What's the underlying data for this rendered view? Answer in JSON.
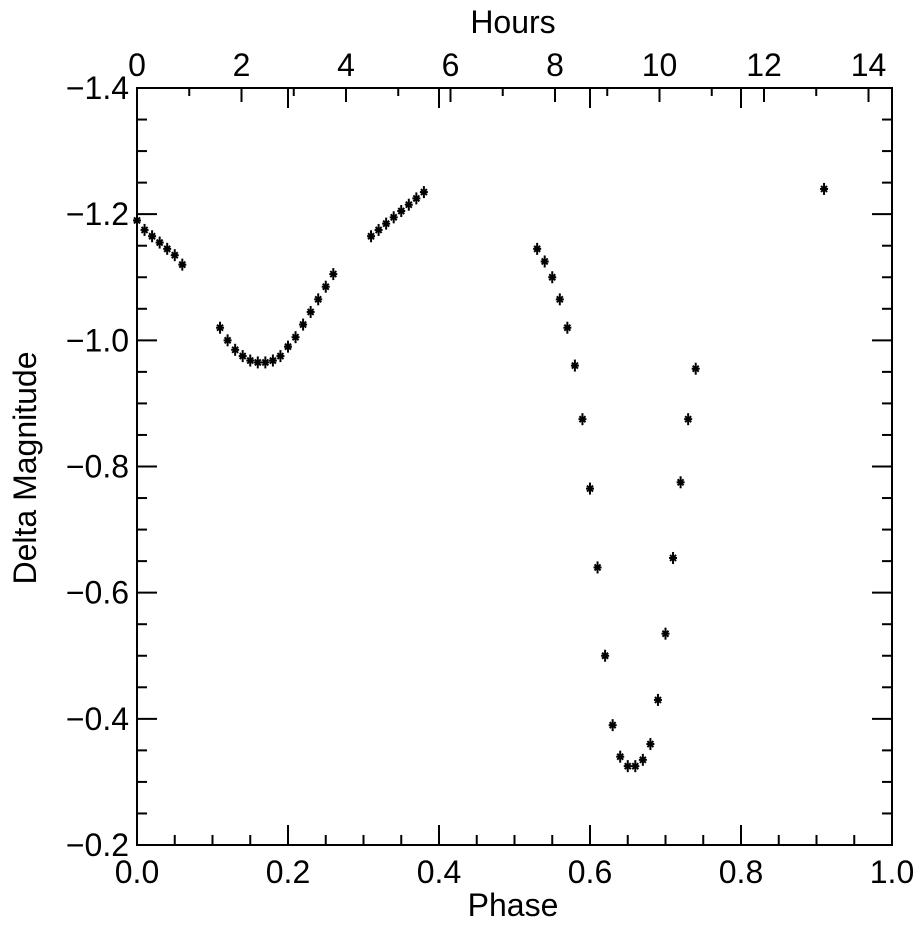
{
  "chart_data": {
    "type": "scatter",
    "title": "",
    "xlabel": "Phase",
    "ylabel": "Delta Magnitude",
    "x2label": "Hours",
    "xlim": [
      0.0,
      1.0
    ],
    "ylim": [
      -0.2,
      -1.4
    ],
    "x2lim": [
      0,
      14.45
    ],
    "xticks": [
      0.0,
      0.2,
      0.4,
      0.6,
      0.8,
      1.0
    ],
    "xtick_labels": [
      "0.0",
      "0.2",
      "0.4",
      "0.6",
      "0.8",
      "1.0"
    ],
    "yticks": [
      -0.2,
      -0.4,
      -0.6,
      -0.8,
      -1.0,
      -1.2,
      -1.4
    ],
    "ytick_labels": [
      "−0.2",
      "−0.4",
      "−0.6",
      "−0.8",
      "−1.0",
      "−1.2",
      "−1.4"
    ],
    "x2ticks": [
      0,
      2,
      4,
      6,
      8,
      10,
      12,
      14
    ],
    "x2tick_labels": [
      "0",
      "2",
      "4",
      "6",
      "8",
      "10",
      "12",
      "14"
    ],
    "grid": false,
    "marker_color": "#000000",
    "series": [
      {
        "points": [
          [
            0.0,
            -1.19
          ],
          [
            0.01,
            -1.175
          ],
          [
            0.02,
            -1.165
          ],
          [
            0.03,
            -1.155
          ],
          [
            0.04,
            -1.145
          ],
          [
            0.05,
            -1.135
          ],
          [
            0.06,
            -1.12
          ],
          [
            0.11,
            -1.02
          ],
          [
            0.12,
            -1.0
          ],
          [
            0.13,
            -0.985
          ],
          [
            0.14,
            -0.975
          ],
          [
            0.15,
            -0.968
          ],
          [
            0.16,
            -0.965
          ],
          [
            0.17,
            -0.965
          ],
          [
            0.18,
            -0.968
          ],
          [
            0.19,
            -0.975
          ],
          [
            0.2,
            -0.99
          ],
          [
            0.21,
            -1.005
          ],
          [
            0.22,
            -1.025
          ],
          [
            0.23,
            -1.045
          ],
          [
            0.24,
            -1.065
          ],
          [
            0.25,
            -1.085
          ],
          [
            0.26,
            -1.105
          ],
          [
            0.31,
            -1.165
          ],
          [
            0.32,
            -1.175
          ],
          [
            0.33,
            -1.185
          ],
          [
            0.34,
            -1.195
          ],
          [
            0.35,
            -1.205
          ],
          [
            0.36,
            -1.215
          ],
          [
            0.37,
            -1.225
          ],
          [
            0.38,
            -1.235
          ],
          [
            0.53,
            -1.145
          ],
          [
            0.54,
            -1.125
          ],
          [
            0.55,
            -1.1
          ],
          [
            0.56,
            -1.065
          ],
          [
            0.57,
            -1.02
          ],
          [
            0.58,
            -0.96
          ],
          [
            0.59,
            -0.875
          ],
          [
            0.6,
            -0.765
          ],
          [
            0.61,
            -0.64
          ],
          [
            0.62,
            -0.5
          ],
          [
            0.63,
            -0.39
          ],
          [
            0.64,
            -0.34
          ],
          [
            0.65,
            -0.325
          ],
          [
            0.66,
            -0.325
          ],
          [
            0.67,
            -0.335
          ],
          [
            0.68,
            -0.36
          ],
          [
            0.69,
            -0.43
          ],
          [
            0.7,
            -0.535
          ],
          [
            0.71,
            -0.655
          ],
          [
            0.72,
            -0.775
          ],
          [
            0.73,
            -0.875
          ],
          [
            0.74,
            -0.955
          ],
          [
            0.91,
            -1.24
          ]
        ]
      }
    ]
  }
}
